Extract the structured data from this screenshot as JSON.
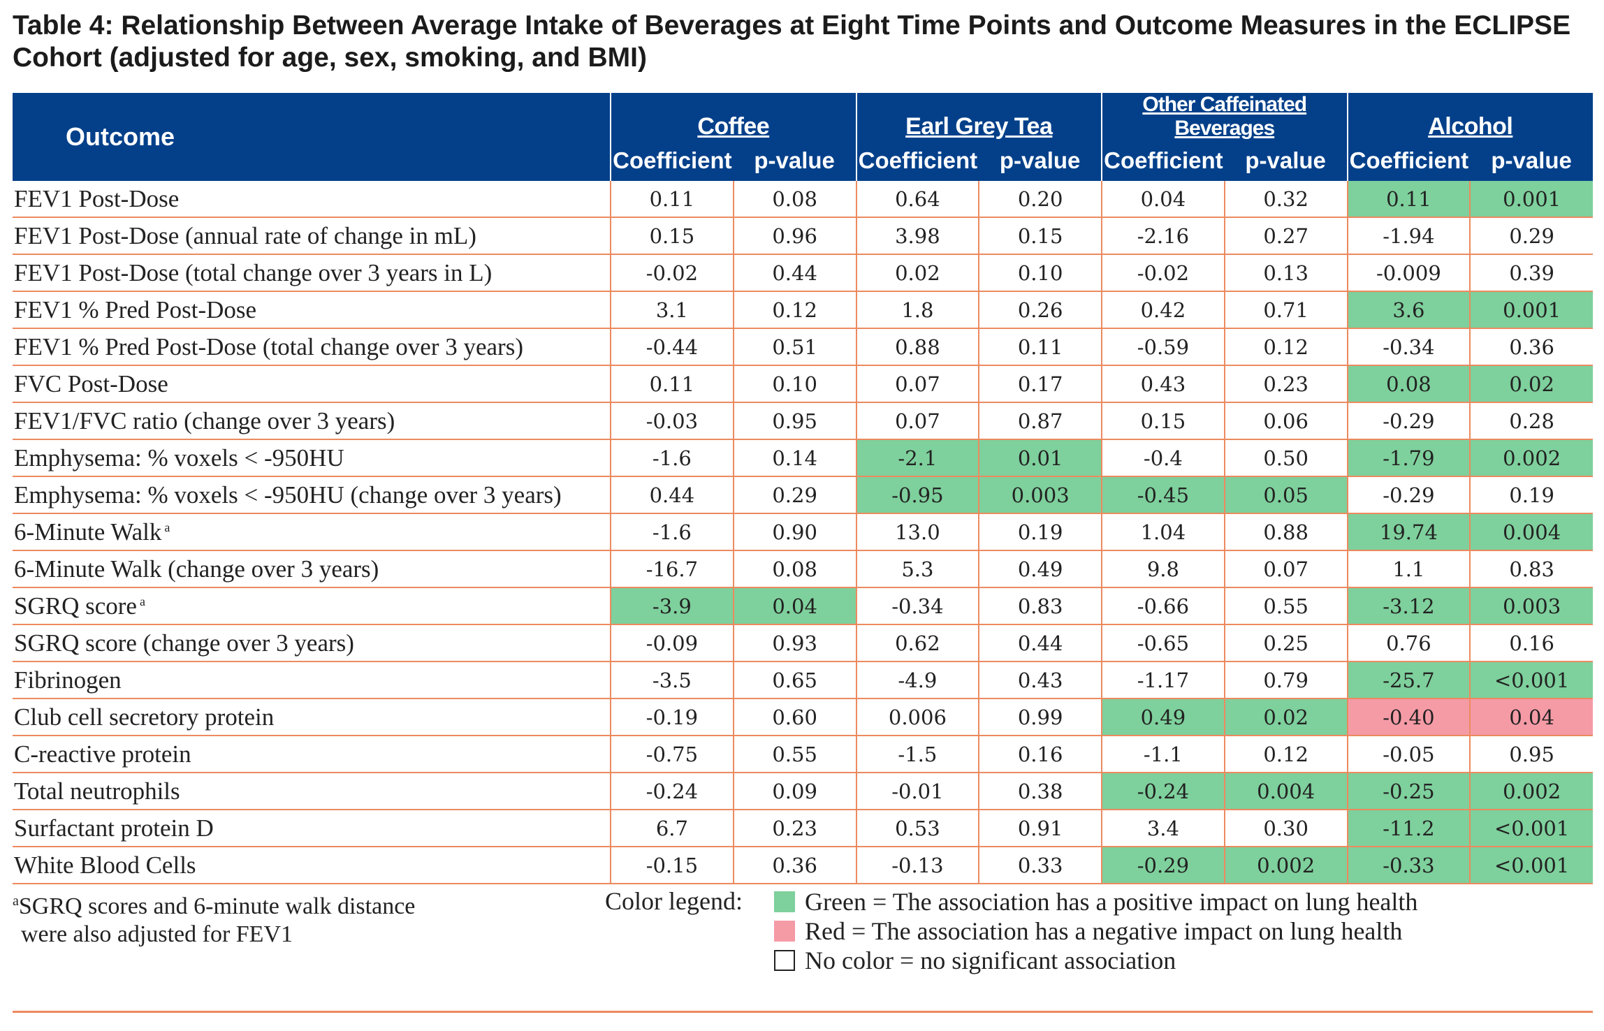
{
  "title": "Table 4:  Relationship Between Average Intake of Beverages at Eight Time Points and Outcome Measures in the ECLIPSE Cohort (adjusted for age, sex, smoking, and BMI)",
  "header": {
    "outcome": "Outcome",
    "groups": [
      "Coffee",
      "Earl Grey Tea",
      "Other Caffeinated Beverages",
      "Alcohol"
    ],
    "coefficient": "Coefficient",
    "pvalue": "p-value"
  },
  "rows": [
    {
      "outcome": "FEV1 Post-Dose",
      "sup": "",
      "cells": [
        [
          "0.11",
          ""
        ],
        [
          "0.08",
          ""
        ],
        [
          "0.64",
          ""
        ],
        [
          "0.20",
          ""
        ],
        [
          "0.04",
          ""
        ],
        [
          "0.32",
          ""
        ],
        [
          "0.11",
          "green"
        ],
        [
          "0.001",
          "green"
        ]
      ]
    },
    {
      "outcome": "FEV1 Post-Dose (annual rate of change in mL)",
      "sup": "",
      "cells": [
        [
          "0.15",
          ""
        ],
        [
          "0.96",
          ""
        ],
        [
          "3.98",
          ""
        ],
        [
          "0.15",
          ""
        ],
        [
          "-2.16",
          ""
        ],
        [
          "0.27",
          ""
        ],
        [
          "-1.94",
          ""
        ],
        [
          "0.29",
          ""
        ]
      ]
    },
    {
      "outcome": "FEV1 Post-Dose (total change over 3 years in L)",
      "sup": "",
      "cells": [
        [
          "-0.02",
          ""
        ],
        [
          "0.44",
          ""
        ],
        [
          "0.02",
          ""
        ],
        [
          "0.10",
          ""
        ],
        [
          "-0.02",
          ""
        ],
        [
          "0.13",
          ""
        ],
        [
          "-0.009",
          ""
        ],
        [
          "0.39",
          ""
        ]
      ]
    },
    {
      "outcome": "FEV1 % Pred Post-Dose",
      "sup": "",
      "cells": [
        [
          "3.1",
          ""
        ],
        [
          "0.12",
          ""
        ],
        [
          "1.8",
          ""
        ],
        [
          "0.26",
          ""
        ],
        [
          "0.42",
          ""
        ],
        [
          "0.71",
          ""
        ],
        [
          "3.6",
          "green"
        ],
        [
          "0.001",
          "green"
        ]
      ]
    },
    {
      "outcome": "FEV1 % Pred Post-Dose (total change over 3 years)",
      "sup": "",
      "cells": [
        [
          "-0.44",
          ""
        ],
        [
          "0.51",
          ""
        ],
        [
          "0.88",
          ""
        ],
        [
          "0.11",
          ""
        ],
        [
          "-0.59",
          ""
        ],
        [
          "0.12",
          ""
        ],
        [
          "-0.34",
          ""
        ],
        [
          "0.36",
          ""
        ]
      ]
    },
    {
      "outcome": "FVC Post-Dose",
      "sup": "",
      "cells": [
        [
          "0.11",
          ""
        ],
        [
          "0.10",
          ""
        ],
        [
          "0.07",
          ""
        ],
        [
          "0.17",
          ""
        ],
        [
          "0.43",
          ""
        ],
        [
          "0.23",
          ""
        ],
        [
          "0.08",
          "green"
        ],
        [
          "0.02",
          "green"
        ]
      ]
    },
    {
      "outcome": "FEV1/FVC ratio (change over 3 years)",
      "sup": "",
      "cells": [
        [
          "-0.03",
          ""
        ],
        [
          "0.95",
          ""
        ],
        [
          "0.07",
          ""
        ],
        [
          "0.87",
          ""
        ],
        [
          "0.15",
          ""
        ],
        [
          "0.06",
          ""
        ],
        [
          "-0.29",
          ""
        ],
        [
          "0.28",
          ""
        ]
      ]
    },
    {
      "outcome": "Emphysema: % voxels < -950HU",
      "sup": "",
      "cells": [
        [
          "-1.6",
          ""
        ],
        [
          "0.14",
          ""
        ],
        [
          "-2.1",
          "green"
        ],
        [
          "0.01",
          "green"
        ],
        [
          "-0.4",
          ""
        ],
        [
          "0.50",
          ""
        ],
        [
          "-1.79",
          "green"
        ],
        [
          "0.002",
          "green"
        ]
      ]
    },
    {
      "outcome": "Emphysema: % voxels < -950HU (change over 3 years)",
      "sup": "",
      "cells": [
        [
          "0.44",
          ""
        ],
        [
          "0.29",
          ""
        ],
        [
          "-0.95",
          "green"
        ],
        [
          "0.003",
          "green"
        ],
        [
          "-0.45",
          "green"
        ],
        [
          "0.05",
          "green"
        ],
        [
          "-0.29",
          ""
        ],
        [
          "0.19",
          ""
        ]
      ]
    },
    {
      "outcome": "6-Minute Walk",
      "sup": "a",
      "cells": [
        [
          "-1.6",
          ""
        ],
        [
          "0.90",
          ""
        ],
        [
          "13.0",
          ""
        ],
        [
          "0.19",
          ""
        ],
        [
          "1.04",
          ""
        ],
        [
          "0.88",
          ""
        ],
        [
          "19.74",
          "green"
        ],
        [
          "0.004",
          "green"
        ]
      ]
    },
    {
      "outcome": "6-Minute Walk (change over 3 years)",
      "sup": "",
      "cells": [
        [
          "-16.7",
          ""
        ],
        [
          "0.08",
          ""
        ],
        [
          "5.3",
          ""
        ],
        [
          "0.49",
          ""
        ],
        [
          "9.8",
          ""
        ],
        [
          "0.07",
          ""
        ],
        [
          "1.1",
          ""
        ],
        [
          "0.83",
          ""
        ]
      ]
    },
    {
      "outcome": "SGRQ score",
      "sup": "a",
      "cells": [
        [
          "-3.9",
          "green"
        ],
        [
          "0.04",
          "green"
        ],
        [
          "-0.34",
          ""
        ],
        [
          "0.83",
          ""
        ],
        [
          "-0.66",
          ""
        ],
        [
          "0.55",
          ""
        ],
        [
          "-3.12",
          "green"
        ],
        [
          "0.003",
          "green"
        ]
      ]
    },
    {
      "outcome": "SGRQ score (change over 3 years)",
      "sup": "",
      "cells": [
        [
          "-0.09",
          ""
        ],
        [
          "0.93",
          ""
        ],
        [
          "0.62",
          ""
        ],
        [
          "0.44",
          ""
        ],
        [
          "-0.65",
          ""
        ],
        [
          "0.25",
          ""
        ],
        [
          "0.76",
          ""
        ],
        [
          "0.16",
          ""
        ]
      ]
    },
    {
      "outcome": "Fibrinogen",
      "sup": "",
      "cells": [
        [
          "-3.5",
          ""
        ],
        [
          "0.65",
          ""
        ],
        [
          "-4.9",
          ""
        ],
        [
          "0.43",
          ""
        ],
        [
          "-1.17",
          ""
        ],
        [
          "0.79",
          ""
        ],
        [
          "-25.7",
          "green"
        ],
        [
          "<0.001",
          "green"
        ]
      ]
    },
    {
      "outcome": "Club cell secretory protein",
      "sup": "",
      "cells": [
        [
          "-0.19",
          ""
        ],
        [
          "0.60",
          ""
        ],
        [
          "0.006",
          ""
        ],
        [
          "0.99",
          ""
        ],
        [
          "0.49",
          "green"
        ],
        [
          "0.02",
          "green"
        ],
        [
          "-0.40",
          "red"
        ],
        [
          "0.04",
          "red"
        ]
      ]
    },
    {
      "outcome": "C-reactive protein",
      "sup": "",
      "cells": [
        [
          "-0.75",
          ""
        ],
        [
          "0.55",
          ""
        ],
        [
          "-1.5",
          ""
        ],
        [
          "0.16",
          ""
        ],
        [
          "-1.1",
          ""
        ],
        [
          "0.12",
          ""
        ],
        [
          "-0.05",
          ""
        ],
        [
          "0.95",
          ""
        ]
      ]
    },
    {
      "outcome": "Total neutrophils",
      "sup": "",
      "cells": [
        [
          "-0.24",
          ""
        ],
        [
          "0.09",
          ""
        ],
        [
          "-0.01",
          ""
        ],
        [
          "0.38",
          ""
        ],
        [
          "-0.24",
          "green"
        ],
        [
          "0.004",
          "green"
        ],
        [
          "-0.25",
          "green"
        ],
        [
          "0.002",
          "green"
        ]
      ]
    },
    {
      "outcome": "Surfactant protein D",
      "sup": "",
      "cells": [
        [
          "6.7",
          ""
        ],
        [
          "0.23",
          ""
        ],
        [
          "0.53",
          ""
        ],
        [
          "0.91",
          ""
        ],
        [
          "3.4",
          ""
        ],
        [
          "0.30",
          ""
        ],
        [
          "-11.2",
          "green"
        ],
        [
          "<0.001",
          "green"
        ]
      ]
    },
    {
      "outcome": "White Blood Cells",
      "sup": "",
      "cells": [
        [
          "-0.15",
          ""
        ],
        [
          "0.36",
          ""
        ],
        [
          "-0.13",
          ""
        ],
        [
          "0.33",
          ""
        ],
        [
          "-0.29",
          "green"
        ],
        [
          "0.002",
          "green"
        ],
        [
          "-0.33",
          "green"
        ],
        [
          "<0.001",
          "green"
        ]
      ]
    }
  ],
  "footnote": {
    "marker": "a",
    "line1": "SGRQ scores and 6-minute walk distance",
    "line2": "were also adjusted for FEV1"
  },
  "legend": {
    "title": "Color legend:",
    "green": "Green = The association has a positive impact on lung health",
    "red": "Red = The association has a negative impact on lung health",
    "none": "No color = no significant association"
  },
  "colors": {
    "header_bg": "#04408a",
    "grid": "#ec8a5f",
    "green": "#7ed09c",
    "red": "#f59ba6"
  }
}
